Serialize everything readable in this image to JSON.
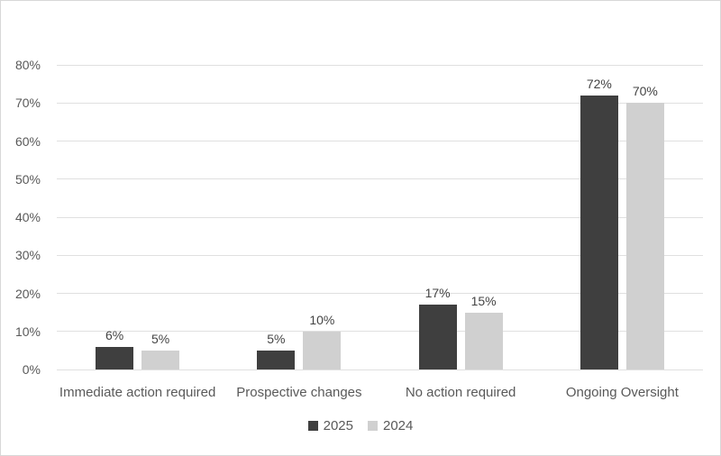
{
  "chart_data": {
    "type": "bar",
    "title": "",
    "categories": [
      "Immediate action required",
      "Prospective changes",
      "No action required",
      "Ongoing Oversight"
    ],
    "series": [
      {
        "name": "2025",
        "values": [
          6,
          5,
          17,
          72
        ],
        "labels": [
          "6%",
          "5%",
          "17%",
          "72%"
        ],
        "color": "#3f3f3f"
      },
      {
        "name": "2024",
        "values": [
          5,
          10,
          15,
          70
        ],
        "labels": [
          "5%",
          "10%",
          "15%",
          "70%"
        ],
        "color": "#d0d0d0"
      }
    ],
    "y_axis": {
      "max": 80,
      "ticks": [
        0,
        10,
        20,
        30,
        40,
        50,
        60,
        70,
        80
      ],
      "tick_labels": [
        "0%",
        "10%",
        "20%",
        "30%",
        "40%",
        "50%",
        "60%",
        "70%",
        "80%"
      ]
    },
    "legend": {
      "position": "bottom-center",
      "entries": [
        "2025",
        "2024"
      ]
    },
    "grid": true,
    "ylim": [
      0,
      80
    ]
  },
  "colors": {
    "background": "#ffffff",
    "frame_border": "#d8d8d8",
    "gridline": "#e0e0e0",
    "tick_text": "#595959",
    "category_text": "#595959",
    "data_label_text": "#444444",
    "series_2025": "#3f3f3f",
    "series_2024": "#d0d0d0"
  }
}
